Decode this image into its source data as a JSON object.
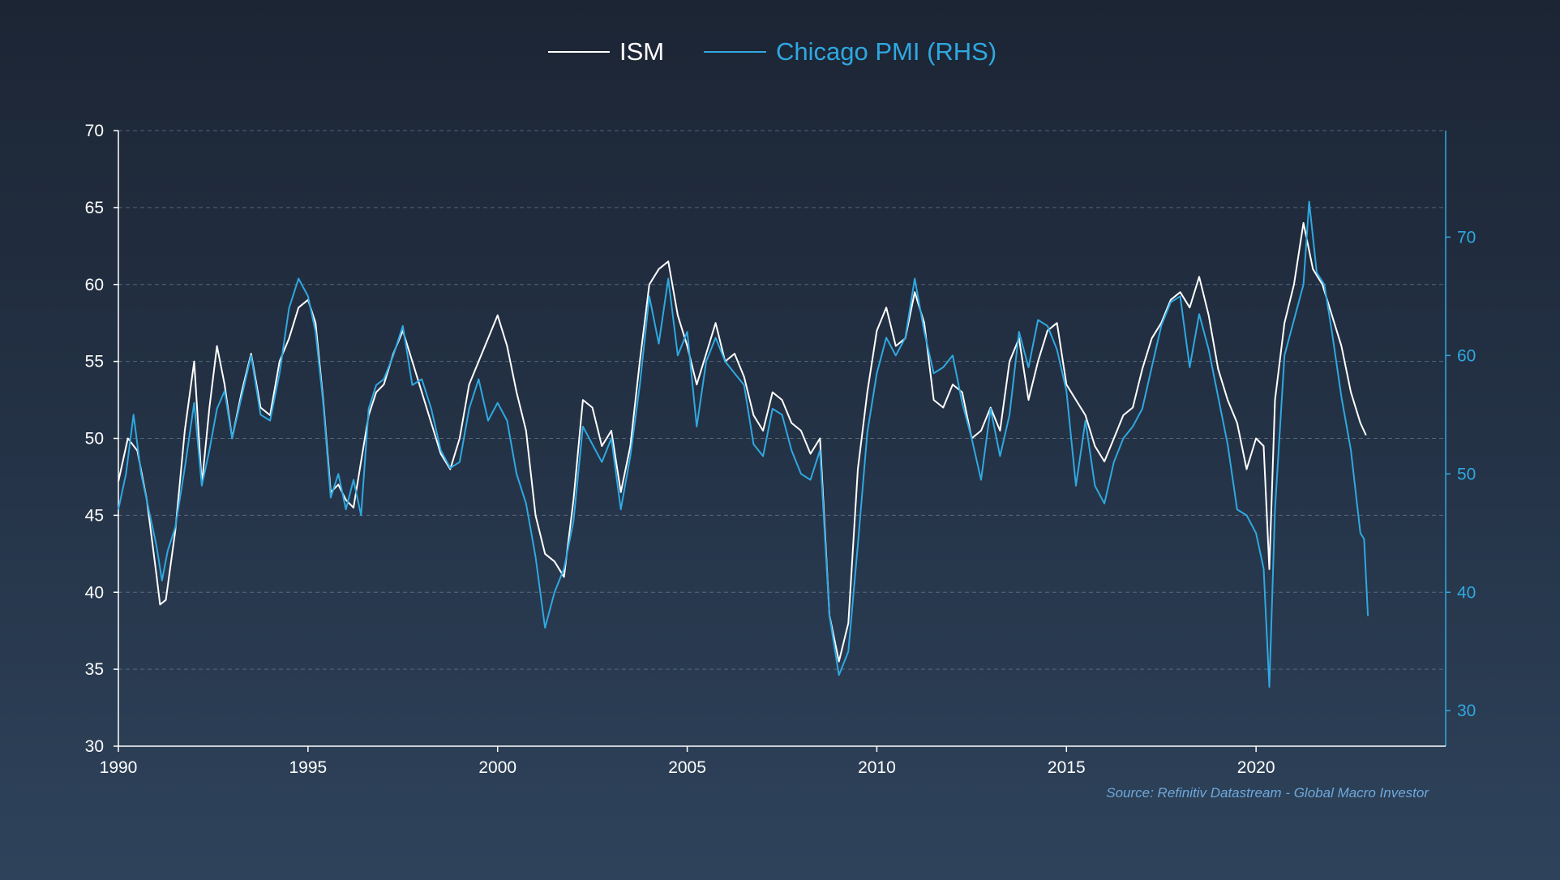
{
  "colors": {
    "ism": "#ffffff",
    "chicago": "#2fa8e0",
    "grid": "#6e7d91",
    "axis_left": "#ffffff",
    "axis_right": "#2fa8e0"
  },
  "legend": {
    "ism": "ISM",
    "chicago": "Chicago PMI (RHS)"
  },
  "source": "Source: Refinitiv Datastream - Global Macro Investor",
  "chart_data": {
    "type": "line",
    "title": "",
    "x_ticks": [
      "1990",
      "1995",
      "2000",
      "2005",
      "2010",
      "2015",
      "2020"
    ],
    "xlim": [
      1990,
      2025
    ],
    "left_axis": {
      "ylim": [
        30,
        70
      ],
      "ticks": [
        "30",
        "35",
        "40",
        "45",
        "50",
        "55",
        "60",
        "65",
        "70"
      ]
    },
    "right_axis": {
      "ylim": [
        27,
        79
      ],
      "ticks": [
        "30",
        "40",
        "50",
        "60",
        "70"
      ]
    },
    "series": [
      {
        "name": "ISM",
        "axis": "left",
        "points": [
          [
            1990.0,
            47.2
          ],
          [
            1990.25,
            50.0
          ],
          [
            1990.5,
            49.2
          ],
          [
            1990.75,
            46.0
          ],
          [
            1991.0,
            41.2
          ],
          [
            1991.1,
            39.2
          ],
          [
            1991.25,
            39.5
          ],
          [
            1991.5,
            44.0
          ],
          [
            1991.75,
            50.5
          ],
          [
            1992.0,
            55.0
          ],
          [
            1992.2,
            47.0
          ],
          [
            1992.4,
            52.0
          ],
          [
            1992.6,
            56.0
          ],
          [
            1992.8,
            53.5
          ],
          [
            1993.0,
            50.0
          ],
          [
            1993.25,
            53.0
          ],
          [
            1993.5,
            55.5
          ],
          [
            1993.75,
            52.0
          ],
          [
            1994.0,
            51.5
          ],
          [
            1994.25,
            55.0
          ],
          [
            1994.5,
            56.5
          ],
          [
            1994.75,
            58.5
          ],
          [
            1995.0,
            59.0
          ],
          [
            1995.2,
            57.5
          ],
          [
            1995.4,
            52.5
          ],
          [
            1995.6,
            46.5
          ],
          [
            1995.8,
            47.0
          ],
          [
            1996.0,
            46.0
          ],
          [
            1996.2,
            45.5
          ],
          [
            1996.4,
            48.5
          ],
          [
            1996.6,
            51.5
          ],
          [
            1996.8,
            53.0
          ],
          [
            1997.0,
            53.5
          ],
          [
            1997.25,
            55.5
          ],
          [
            1997.5,
            57.0
          ],
          [
            1997.75,
            55.0
          ],
          [
            1998.0,
            53.0
          ],
          [
            1998.25,
            51.0
          ],
          [
            1998.5,
            49.0
          ],
          [
            1998.75,
            48.0
          ],
          [
            1999.0,
            50.0
          ],
          [
            1999.25,
            53.5
          ],
          [
            1999.5,
            55.0
          ],
          [
            1999.75,
            56.5
          ],
          [
            2000.0,
            58.0
          ],
          [
            2000.25,
            56.0
          ],
          [
            2000.5,
            53.0
          ],
          [
            2000.75,
            50.5
          ],
          [
            2001.0,
            45.0
          ],
          [
            2001.25,
            42.5
          ],
          [
            2001.5,
            42.0
          ],
          [
            2001.75,
            41.0
          ],
          [
            2002.0,
            46.0
          ],
          [
            2002.25,
            52.5
          ],
          [
            2002.5,
            52.0
          ],
          [
            2002.75,
            49.5
          ],
          [
            2003.0,
            50.5
          ],
          [
            2003.25,
            46.5
          ],
          [
            2003.5,
            49.5
          ],
          [
            2003.75,
            55.0
          ],
          [
            2004.0,
            60.0
          ],
          [
            2004.25,
            61.0
          ],
          [
            2004.5,
            61.5
          ],
          [
            2004.75,
            58.0
          ],
          [
            2005.0,
            56.0
          ],
          [
            2005.25,
            53.5
          ],
          [
            2005.5,
            55.5
          ],
          [
            2005.75,
            57.5
          ],
          [
            2006.0,
            55.0
          ],
          [
            2006.25,
            55.5
          ],
          [
            2006.5,
            54.0
          ],
          [
            2006.75,
            51.5
          ],
          [
            2007.0,
            50.5
          ],
          [
            2007.25,
            53.0
          ],
          [
            2007.5,
            52.5
          ],
          [
            2007.75,
            51.0
          ],
          [
            2008.0,
            50.5
          ],
          [
            2008.25,
            49.0
          ],
          [
            2008.5,
            50.0
          ],
          [
            2008.75,
            38.5
          ],
          [
            2009.0,
            35.5
          ],
          [
            2009.25,
            38.0
          ],
          [
            2009.5,
            48.0
          ],
          [
            2009.75,
            53.0
          ],
          [
            2010.0,
            57.0
          ],
          [
            2010.25,
            58.5
          ],
          [
            2010.5,
            56.0
          ],
          [
            2010.75,
            56.5
          ],
          [
            2011.0,
            59.5
          ],
          [
            2011.25,
            57.5
          ],
          [
            2011.5,
            52.5
          ],
          [
            2011.75,
            52.0
          ],
          [
            2012.0,
            53.5
          ],
          [
            2012.25,
            53.0
          ],
          [
            2012.5,
            50.0
          ],
          [
            2012.75,
            50.5
          ],
          [
            2013.0,
            52.0
          ],
          [
            2013.25,
            50.5
          ],
          [
            2013.5,
            55.0
          ],
          [
            2013.75,
            56.5
          ],
          [
            2014.0,
            52.5
          ],
          [
            2014.25,
            55.0
          ],
          [
            2014.5,
            57.0
          ],
          [
            2014.75,
            57.5
          ],
          [
            2015.0,
            53.5
          ],
          [
            2015.25,
            52.5
          ],
          [
            2015.5,
            51.5
          ],
          [
            2015.75,
            49.5
          ],
          [
            2016.0,
            48.5
          ],
          [
            2016.25,
            50.0
          ],
          [
            2016.5,
            51.5
          ],
          [
            2016.75,
            52.0
          ],
          [
            2017.0,
            54.5
          ],
          [
            2017.25,
            56.5
          ],
          [
            2017.5,
            57.5
          ],
          [
            2017.75,
            59.0
          ],
          [
            2018.0,
            59.5
          ],
          [
            2018.25,
            58.5
          ],
          [
            2018.5,
            60.5
          ],
          [
            2018.75,
            58.0
          ],
          [
            2019.0,
            54.5
          ],
          [
            2019.25,
            52.5
          ],
          [
            2019.5,
            51.0
          ],
          [
            2019.75,
            48.0
          ],
          [
            2020.0,
            50.0
          ],
          [
            2020.2,
            49.5
          ],
          [
            2020.35,
            41.5
          ],
          [
            2020.5,
            52.5
          ],
          [
            2020.75,
            57.5
          ],
          [
            2021.0,
            60.0
          ],
          [
            2021.25,
            64.0
          ],
          [
            2021.5,
            61.0
          ],
          [
            2021.75,
            60.0
          ],
          [
            2022.0,
            58.0
          ],
          [
            2022.25,
            56.0
          ],
          [
            2022.5,
            53.0
          ],
          [
            2022.75,
            51.0
          ],
          [
            2022.9,
            50.2
          ]
        ]
      },
      {
        "name": "Chicago PMI (RHS)",
        "axis": "right",
        "points": [
          [
            1990.0,
            47.0
          ],
          [
            1990.2,
            50.0
          ],
          [
            1990.4,
            55.0
          ],
          [
            1990.6,
            50.0
          ],
          [
            1990.8,
            47.0
          ],
          [
            1991.0,
            44.0
          ],
          [
            1991.15,
            41.0
          ],
          [
            1991.3,
            43.5
          ],
          [
            1991.5,
            45.5
          ],
          [
            1991.75,
            50.5
          ],
          [
            1992.0,
            56.0
          ],
          [
            1992.2,
            49.0
          ],
          [
            1992.4,
            52.0
          ],
          [
            1992.6,
            55.5
          ],
          [
            1992.8,
            57.0
          ],
          [
            1993.0,
            53.0
          ],
          [
            1993.25,
            56.5
          ],
          [
            1993.5,
            60.0
          ],
          [
            1993.75,
            55.0
          ],
          [
            1994.0,
            54.5
          ],
          [
            1994.25,
            58.5
          ],
          [
            1994.5,
            64.0
          ],
          [
            1994.75,
            66.5
          ],
          [
            1995.0,
            65.0
          ],
          [
            1995.2,
            62.0
          ],
          [
            1995.4,
            56.0
          ],
          [
            1995.6,
            48.0
          ],
          [
            1995.8,
            50.0
          ],
          [
            1996.0,
            47.0
          ],
          [
            1996.2,
            49.5
          ],
          [
            1996.4,
            46.5
          ],
          [
            1996.6,
            55.5
          ],
          [
            1996.8,
            57.5
          ],
          [
            1997.0,
            58.0
          ],
          [
            1997.25,
            60.0
          ],
          [
            1997.5,
            62.5
          ],
          [
            1997.75,
            57.5
          ],
          [
            1998.0,
            58.0
          ],
          [
            1998.25,
            55.5
          ],
          [
            1998.5,
            52.0
          ],
          [
            1998.75,
            50.5
          ],
          [
            1999.0,
            51.0
          ],
          [
            1999.25,
            55.5
          ],
          [
            1999.5,
            58.0
          ],
          [
            1999.75,
            54.5
          ],
          [
            2000.0,
            56.0
          ],
          [
            2000.25,
            54.5
          ],
          [
            2000.5,
            50.0
          ],
          [
            2000.75,
            47.5
          ],
          [
            2001.0,
            43.0
          ],
          [
            2001.25,
            37.0
          ],
          [
            2001.5,
            40.0
          ],
          [
            2001.75,
            42.0
          ],
          [
            2002.0,
            46.0
          ],
          [
            2002.25,
            54.0
          ],
          [
            2002.5,
            52.5
          ],
          [
            2002.75,
            51.0
          ],
          [
            2003.0,
            53.0
          ],
          [
            2003.25,
            47.0
          ],
          [
            2003.5,
            51.5
          ],
          [
            2003.75,
            57.5
          ],
          [
            2004.0,
            65.0
          ],
          [
            2004.25,
            61.0
          ],
          [
            2004.5,
            66.5
          ],
          [
            2004.75,
            60.0
          ],
          [
            2005.0,
            62.0
          ],
          [
            2005.25,
            54.0
          ],
          [
            2005.5,
            59.5
          ],
          [
            2005.75,
            61.5
          ],
          [
            2006.0,
            59.5
          ],
          [
            2006.25,
            58.5
          ],
          [
            2006.5,
            57.5
          ],
          [
            2006.75,
            52.5
          ],
          [
            2007.0,
            51.5
          ],
          [
            2007.25,
            55.5
          ],
          [
            2007.5,
            55.0
          ],
          [
            2007.75,
            52.0
          ],
          [
            2008.0,
            50.0
          ],
          [
            2008.25,
            49.5
          ],
          [
            2008.5,
            52.0
          ],
          [
            2008.75,
            38.0
          ],
          [
            2009.0,
            33.0
          ],
          [
            2009.25,
            35.0
          ],
          [
            2009.5,
            44.0
          ],
          [
            2009.75,
            53.5
          ],
          [
            2010.0,
            58.5
          ],
          [
            2010.25,
            61.5
          ],
          [
            2010.5,
            60.0
          ],
          [
            2010.75,
            61.5
          ],
          [
            2011.0,
            66.5
          ],
          [
            2011.25,
            62.0
          ],
          [
            2011.5,
            58.5
          ],
          [
            2011.75,
            59.0
          ],
          [
            2012.0,
            60.0
          ],
          [
            2012.25,
            56.0
          ],
          [
            2012.5,
            53.0
          ],
          [
            2012.75,
            49.5
          ],
          [
            2013.0,
            55.5
          ],
          [
            2013.25,
            51.5
          ],
          [
            2013.5,
            55.0
          ],
          [
            2013.75,
            62.0
          ],
          [
            2014.0,
            59.0
          ],
          [
            2014.25,
            63.0
          ],
          [
            2014.5,
            62.5
          ],
          [
            2014.75,
            60.5
          ],
          [
            2015.0,
            57.0
          ],
          [
            2015.25,
            49.0
          ],
          [
            2015.5,
            54.5
          ],
          [
            2015.75,
            49.0
          ],
          [
            2016.0,
            47.5
          ],
          [
            2016.25,
            51.0
          ],
          [
            2016.5,
            53.0
          ],
          [
            2016.75,
            54.0
          ],
          [
            2017.0,
            55.5
          ],
          [
            2017.25,
            59.0
          ],
          [
            2017.5,
            62.5
          ],
          [
            2017.75,
            64.5
          ],
          [
            2018.0,
            65.0
          ],
          [
            2018.25,
            59.0
          ],
          [
            2018.5,
            63.5
          ],
          [
            2018.75,
            60.5
          ],
          [
            2019.0,
            56.5
          ],
          [
            2019.25,
            52.5
          ],
          [
            2019.5,
            47.0
          ],
          [
            2019.75,
            46.5
          ],
          [
            2020.0,
            45.0
          ],
          [
            2020.2,
            42.0
          ],
          [
            2020.35,
            32.0
          ],
          [
            2020.5,
            47.0
          ],
          [
            2020.75,
            60.0
          ],
          [
            2021.0,
            63.0
          ],
          [
            2021.25,
            66.0
          ],
          [
            2021.4,
            73.0
          ],
          [
            2021.6,
            67.0
          ],
          [
            2021.8,
            66.0
          ],
          [
            2022.0,
            62.0
          ],
          [
            2022.25,
            56.5
          ],
          [
            2022.5,
            52.0
          ],
          [
            2022.75,
            45.0
          ],
          [
            2022.85,
            44.5
          ],
          [
            2022.95,
            38.0
          ]
        ]
      }
    ]
  }
}
